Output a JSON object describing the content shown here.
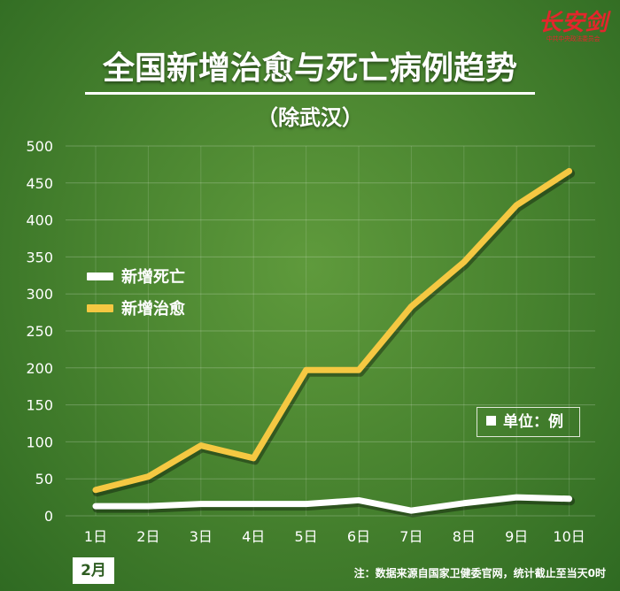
{
  "logo": {
    "main": "长安剑",
    "sub": "中共中央政法委员会"
  },
  "chart_data": {
    "type": "line",
    "title": "全国新增治愈与死亡病例趋势",
    "subtitle": "（除武汉）",
    "categories": [
      "1日",
      "2日",
      "3日",
      "4日",
      "5日",
      "6日",
      "7日",
      "8日",
      "9日",
      "10日"
    ],
    "series": [
      {
        "name": "新增死亡",
        "color": "#ffffff",
        "values": [
          13,
          13,
          16,
          16,
          16,
          21,
          7,
          17,
          25,
          23
        ]
      },
      {
        "name": "新增治愈",
        "color": "#f5c842",
        "values": [
          35,
          53,
          95,
          78,
          197,
          197,
          283,
          343,
          420,
          466
        ]
      }
    ],
    "yticks": [
      "0",
      "50",
      "100",
      "150",
      "200",
      "250",
      "300",
      "350",
      "400",
      "450",
      "500"
    ],
    "ylim": [
      0,
      500
    ],
    "grid": true,
    "legend": "left",
    "unit_label": "单位：例",
    "month_label": "2月",
    "note": "注：数据来源自国家卫健委官网，统计截止至当天0时"
  }
}
